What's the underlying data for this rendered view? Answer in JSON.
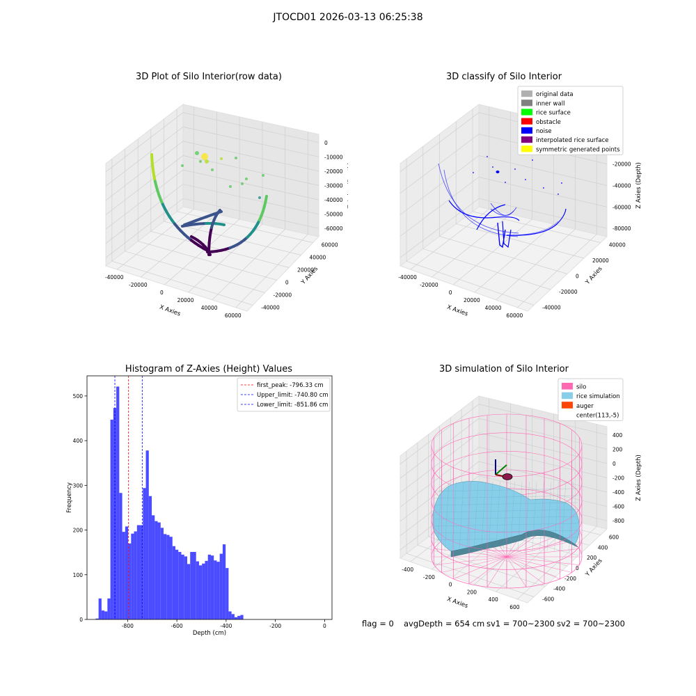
{
  "suptitle": "JTOCD01 2026-03-13 06:25:38",
  "chart_data": [
    {
      "type": "scatter",
      "projection": "3d",
      "title": "3D Plot of Silo Interior(row data)",
      "xlabel": "X Axies",
      "ylabel": "Y Axies",
      "zlabel": "Z Axies (Depth)",
      "x_ticks": [
        "-40000",
        "-20000",
        "0",
        "20000",
        "40000",
        "60000"
      ],
      "y_ticks": [
        "-40000",
        "-20000",
        "0",
        "20000",
        "40000",
        "60000"
      ],
      "z_ticks": [
        "0",
        "-10000",
        "-20000",
        "-30000",
        "-40000",
        "-50000",
        "-60000"
      ],
      "colormap": "viridis",
      "grid": true
    },
    {
      "type": "scatter",
      "projection": "3d",
      "title": "3D classify of Silo Interior",
      "xlabel": "X Axies",
      "ylabel": "Y Axies",
      "zlabel": "Z Axies (Depth)",
      "x_ticks": [
        "-40000",
        "-20000",
        "0",
        "20000",
        "40000",
        "60000"
      ],
      "y_ticks": [
        "-40000",
        "-20000",
        "0",
        "20000",
        "40000"
      ],
      "z_ticks": [
        "0",
        "-20000",
        "-40000",
        "-60000",
        "-80000"
      ],
      "legend_position": "top-right",
      "legend": [
        {
          "label": "original data",
          "color": "#b0b0b0"
        },
        {
          "label": "inner wall",
          "color": "#808080"
        },
        {
          "label": "rice surface",
          "color": "#00ff00"
        },
        {
          "label": "obstacle",
          "color": "#ff0000"
        },
        {
          "label": "noise",
          "color": "#0000ff"
        },
        {
          "label": "interpolated rice surface",
          "color": "#800080"
        },
        {
          "label": "symmetric generated points",
          "color": "#ffff00"
        }
      ],
      "grid": true
    },
    {
      "type": "bar",
      "title": "Histogram of Z-Axies (Height) Values",
      "xlabel": "Depth (cm)",
      "ylabel": "Frequency",
      "xlim": [
        -965,
        30
      ],
      "ylim": [
        0,
        545
      ],
      "x_ticks": [
        -800,
        -600,
        -400,
        -200,
        0
      ],
      "y_ticks": [
        0,
        100,
        200,
        300,
        400,
        500
      ],
      "bar_color": "#4b4bff",
      "bin_start": -930,
      "bin_width": 12,
      "values": [
        2,
        47,
        20,
        18,
        47,
        447,
        473,
        521,
        283,
        196,
        208,
        170,
        192,
        197,
        211,
        211,
        294,
        378,
        276,
        233,
        220,
        217,
        205,
        191,
        189,
        185,
        164,
        156,
        151,
        145,
        141,
        124,
        151,
        151,
        130,
        121,
        125,
        131,
        145,
        143,
        132,
        129,
        147,
        168,
        115,
        18,
        12,
        5,
        8,
        10
      ],
      "vlines": [
        {
          "x": -796.33,
          "label": "first_peak: -796.33 cm",
          "color": "#ff0000"
        },
        {
          "x": -740.8,
          "label": "Upper_limit: -740.80 cm",
          "color": "#0000ff"
        },
        {
          "x": -851.86,
          "label": "Lower_limit: -851.86 cm",
          "color": "#0000ff"
        }
      ],
      "legend_position": "top-right",
      "grid": false
    },
    {
      "type": "surface",
      "projection": "3d",
      "title": "3D simulation of Silo Interior",
      "xlabel": "X Axies",
      "ylabel": "Y Axies",
      "zlabel": "Z Axies (Depth)",
      "x_ticks": [
        "-400",
        "-200",
        "0",
        "200",
        "400",
        "600"
      ],
      "y_ticks": [
        "-600",
        "-400",
        "-200",
        "0",
        "200",
        "400",
        "600"
      ],
      "z_ticks": [
        "400",
        "200",
        "0",
        "-200",
        "-400",
        "-600",
        "-800"
      ],
      "legend_position": "top-right",
      "legend": [
        {
          "label": "silo",
          "color": "#ff69b4"
        },
        {
          "label": "rice simulation",
          "color": "#87ceeb"
        },
        {
          "label": "auger",
          "color": "#ff4500"
        },
        {
          "label": "center(113,-5)",
          "color": "#ffffff"
        }
      ],
      "grid": true
    }
  ],
  "status": {
    "flag": "flag = 0",
    "avg": "avgDepth = 654 cm",
    "sv1": "sv1 = 700~2300",
    "sv2": "sv2 = 700~2300"
  }
}
